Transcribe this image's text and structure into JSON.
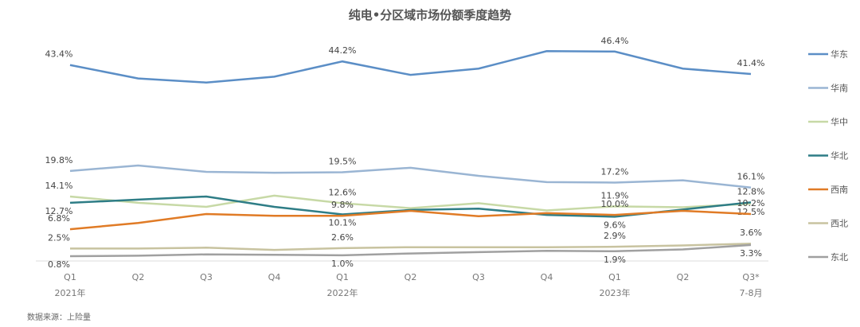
{
  "chart_data": {
    "type": "line",
    "title": "纯电•分区域市场份额季度趋势",
    "categories": [
      "Q1",
      "Q2",
      "Q3",
      "Q4",
      "Q1",
      "Q2",
      "Q3",
      "Q4",
      "Q1",
      "Q2",
      "Q3*"
    ],
    "category_sublabels": [
      "2021年",
      "",
      "",
      "",
      "2022年",
      "",
      "",
      "",
      "2023年",
      "",
      "7-8月"
    ],
    "unit": "%",
    "ylim": [
      0,
      50
    ],
    "grid": false,
    "legend": "right",
    "labeled_points": [
      0,
      4,
      8,
      10
    ],
    "series": [
      {
        "name": "华东",
        "color": "#5b8ec6",
        "values": [
          43.4,
          40.4,
          39.5,
          40.8,
          44.2,
          41.2,
          42.6,
          46.5,
          46.4,
          42.6,
          41.4
        ]
      },
      {
        "name": "华南",
        "color": "#9ab5d3",
        "values": [
          19.8,
          21.0,
          19.6,
          19.4,
          19.5,
          20.5,
          18.7,
          17.3,
          17.2,
          17.7,
          16.1
        ]
      },
      {
        "name": "华中",
        "color": "#c7d9a6",
        "values": [
          14.1,
          12.7,
          11.8,
          14.3,
          12.6,
          11.5,
          12.6,
          11.0,
          11.9,
          11.7,
          12.5
        ]
      },
      {
        "name": "华北",
        "color": "#2e7d86",
        "values": [
          12.7,
          13.4,
          14.1,
          11.8,
          10.1,
          11.1,
          11.4,
          10.0,
          9.6,
          11.2,
          12.8
        ]
      },
      {
        "name": "西南",
        "color": "#e07b26",
        "values": [
          6.8,
          8.2,
          10.2,
          9.8,
          9.8,
          10.9,
          9.7,
          10.4,
          10.0,
          10.9,
          10.2
        ]
      },
      {
        "name": "西北",
        "color": "#c8c3a0",
        "values": [
          2.5,
          2.5,
          2.7,
          2.2,
          2.6,
          2.8,
          2.8,
          2.8,
          2.9,
          3.2,
          3.6
        ]
      },
      {
        "name": "东北",
        "color": "#a0a0a0",
        "values": [
          0.8,
          0.9,
          1.2,
          1.1,
          1.0,
          1.4,
          1.7,
          2.0,
          1.9,
          2.3,
          3.3
        ]
      }
    ]
  },
  "source": "数据来源：上险量"
}
